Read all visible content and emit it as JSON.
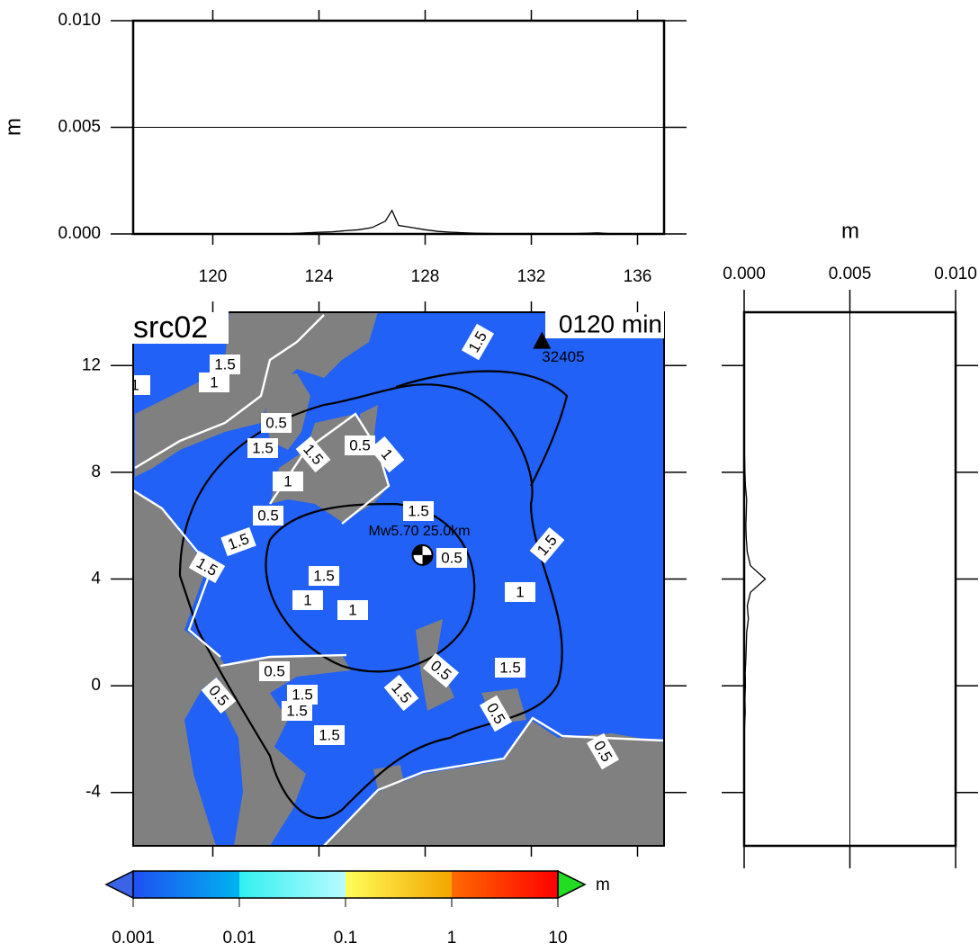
{
  "chart_data": [
    {
      "type": "line",
      "ylabel": "m",
      "x": [
        117,
        117.5,
        118,
        118.5,
        119,
        119.5,
        120,
        120.5,
        121,
        121.5,
        122,
        122.5,
        123,
        123.5,
        124,
        124.5,
        125,
        125.5,
        126,
        126.5,
        126.75,
        127,
        127.5,
        128,
        128.5,
        129,
        129.5,
        130,
        130.5,
        131,
        131.5,
        132,
        132.5,
        133,
        133.5,
        134,
        134.5,
        135,
        135.5,
        136,
        136.5,
        137
      ],
      "values": [
        0,
        0,
        0,
        0,
        0,
        0,
        0,
        0,
        0,
        0,
        0,
        0,
        2e-05,
        5e-05,
        8e-05,
        0.0001,
        0.00015,
        0.0002,
        0.0003,
        0.0006,
        0.0011,
        0.0004,
        0.0003,
        0.0002,
        0.00012,
        8e-05,
        5e-05,
        3e-05,
        2e-05,
        1e-05,
        1e-05,
        2e-05,
        1e-05,
        1e-05,
        1e-05,
        3e-05,
        5e-05,
        1e-05,
        0,
        0,
        0,
        0
      ],
      "color": "#000000",
      "xlim": [
        117,
        137
      ],
      "xticks": [
        120,
        124,
        128,
        132,
        136
      ],
      "ylim": [
        0,
        0.01
      ],
      "yticks": [
        {
          "value": 0,
          "label": "0.000"
        },
        {
          "value": 0.005,
          "label": "0.005"
        },
        {
          "value": 0.01,
          "label": "0.010"
        }
      ],
      "grid": true
    },
    {
      "type": "profile",
      "xlabel": "m",
      "y": [
        -6,
        -5.5,
        -5,
        -4.5,
        -4,
        -3.5,
        -3,
        -2.5,
        -2,
        -1.5,
        -1,
        -0.5,
        0,
        0.5,
        1,
        1.5,
        2,
        2.5,
        3,
        3.5,
        4,
        4.5,
        5,
        5.5,
        6,
        6.5,
        7,
        7.5,
        8,
        8.5,
        9,
        9.5,
        10,
        10.5,
        11,
        11.5,
        12,
        12.5,
        13,
        13.5,
        14
      ],
      "values": [
        0,
        0,
        0,
        0,
        0,
        0,
        0,
        0,
        0,
        2e-05,
        5e-05,
        4e-05,
        6e-05,
        5e-05,
        8e-05,
        0.0001,
        0.00012,
        0.0002,
        0.00015,
        0.0003,
        0.001,
        0.0003,
        0.00015,
        0.0001,
        8e-05,
        0.0001,
        0.00012,
        6e-05,
        4e-05,
        2e-05,
        0,
        0,
        0,
        0,
        0,
        0,
        0,
        0,
        0,
        0,
        0
      ],
      "color": "#000000",
      "xlim": [
        0,
        0.01
      ],
      "xticks": [
        {
          "value": 0,
          "label": "0.000"
        },
        {
          "value": 0.005,
          "label": "0.005"
        },
        {
          "value": 0.01,
          "label": "0.010"
        }
      ],
      "ylim": [
        -6,
        14
      ],
      "grid": true
    },
    {
      "type": "map",
      "title": "src02",
      "time": "0120 min",
      "xlim": [
        117,
        137
      ],
      "xticks": [
        120,
        124,
        128,
        132,
        136
      ],
      "ylim": [
        -6,
        14
      ],
      "yticks": [
        12,
        8,
        4,
        0,
        -4
      ],
      "ocean_color": "#2161f5",
      "land_color": "#808080",
      "station": {
        "name": "32405",
        "lon": 132.4,
        "lat": 12.9
      },
      "epicenter": {
        "label": "Mw5.70  25.0km",
        "lon": 127.9,
        "lat": 4.9
      },
      "contour_labels": [
        "1.5",
        "1.5",
        "1",
        "1",
        "0.5",
        "1.5",
        "1.5",
        "0.5",
        "1",
        "1",
        "1.5",
        "0.5",
        "1.5",
        "1.5",
        "0.5",
        "1.5",
        "1.5",
        "1",
        "1",
        "1",
        "0.5",
        "0.5",
        "1.5",
        "1.5",
        "1.5",
        "0.5",
        "1.5",
        "1.5",
        "0.5",
        "0.5"
      ],
      "colorbar": {
        "label": "m",
        "log": true,
        "lim": [
          0.001,
          10
        ],
        "ticks": [
          0.001,
          0.01,
          0.1,
          1,
          10
        ]
      }
    }
  ]
}
